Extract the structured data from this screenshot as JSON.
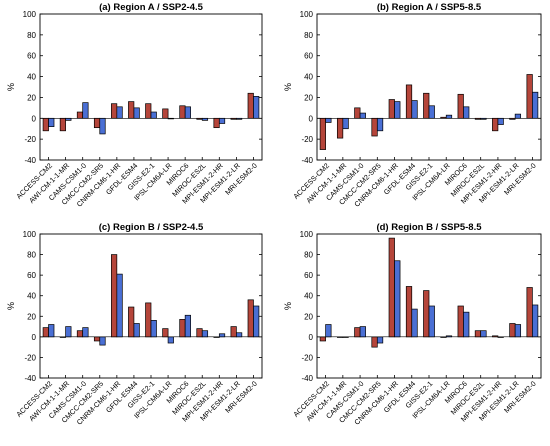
{
  "figure": {
    "background": "#ffffff"
  },
  "chart_data": [
    {
      "type": "bar",
      "title": "(a) Region A / SSP2-4.5",
      "ylabel": "%",
      "ylim": [
        -40,
        100
      ],
      "yticks": [
        -40,
        -20,
        0,
        20,
        40,
        60,
        80,
        100
      ],
      "grid": false,
      "legend": "none",
      "categories": [
        "ACCESS-CM2",
        "AWI-CM-1-1-MR",
        "CAMS-CSM1-0",
        "CMCC-CM2-SR5",
        "CNRM-CM6-1-HR",
        "GFDL-ESM4",
        "GISS-E2-1",
        "IPSL-CM6A-LR",
        "MIROC6",
        "MIROC-ES2L",
        "MPI-ESM1-2-HR",
        "MPI-ESM1-2-LR",
        "MRI-ESM2-0"
      ],
      "series": [
        {
          "color": "#b5453a",
          "values": [
            -12,
            -12,
            6,
            -9,
            14,
            16,
            14,
            9,
            12,
            -1,
            -9,
            -1,
            24
          ]
        },
        {
          "color": "#4a6fd4",
          "values": [
            -8,
            -2,
            15,
            -15,
            11,
            10,
            6,
            0,
            11,
            -2,
            -5,
            -1,
            21
          ]
        }
      ]
    },
    {
      "type": "bar",
      "title": "(b) Region A / SSP5-8.5",
      "ylabel": "%",
      "ylim": [
        -40,
        100
      ],
      "yticks": [
        -40,
        -20,
        0,
        20,
        40,
        60,
        80,
        100
      ],
      "grid": false,
      "legend": "none",
      "categories": [
        "ACCESS-CM2",
        "AWI-CM-1-1-MR",
        "CAMS-CSM1-0",
        "CMCC-CM2-SR5",
        "CNRM-CM6-1-HR",
        "GFDL-ESM4",
        "GISS-E2-1",
        "IPSL-CM6A-LR",
        "MIROC6",
        "MIROC-ES2L",
        "MPI-ESM1-2-HR",
        "MPI-ESM1-2-LR",
        "MRI-ESM2-0"
      ],
      "series": [
        {
          "color": "#b5453a",
          "values": [
            -30,
            -19,
            10,
            -17,
            18,
            32,
            24,
            1,
            23,
            -1,
            -12,
            -1,
            42
          ]
        },
        {
          "color": "#4a6fd4",
          "values": [
            -4,
            -10,
            5,
            -12,
            16,
            17,
            12,
            3,
            11,
            -1,
            -6,
            4,
            25
          ]
        }
      ]
    },
    {
      "type": "bar",
      "title": "(c) Region B / SSP2-4.5",
      "ylabel": "%",
      "ylim": [
        -40,
        100
      ],
      "yticks": [
        -40,
        -20,
        0,
        20,
        40,
        60,
        80,
        100
      ],
      "grid": false,
      "legend": "none",
      "categories": [
        "ACCESS-CM2",
        "AWI-CM-1-1-MR",
        "CAMS-CSM1-0",
        "CMCC-CM2-SR5",
        "CNRM-CM6-1-HR",
        "GFDL-ESM4",
        "GISS-E2-1",
        "IPSL-CM6A-LR",
        "MIROC6",
        "MIROC-ES2L",
        "MPI-ESM1-2-HR",
        "MPI-ESM1-2-LR",
        "MRI-ESM2-0"
      ],
      "series": [
        {
          "color": "#b5453a",
          "values": [
            9,
            0,
            6,
            -4,
            80,
            29,
            33,
            8,
            17,
            8,
            0,
            10,
            36
          ]
        },
        {
          "color": "#4a6fd4",
          "values": [
            12,
            10,
            9,
            -8,
            61,
            13,
            16,
            -6,
            21,
            6,
            3,
            4,
            30
          ]
        }
      ]
    },
    {
      "type": "bar",
      "title": "(d) Region B / SSP5-8.5",
      "ylabel": "%",
      "ylim": [
        -40,
        100
      ],
      "yticks": [
        -40,
        -20,
        0,
        20,
        40,
        60,
        80,
        100
      ],
      "grid": false,
      "legend": "none",
      "categories": [
        "ACCESS-CM2",
        "AWI-CM-1-1-MR",
        "CAMS-CSM1-0",
        "CMCC-CM2-SR5",
        "CNRM-CM6-1-HR",
        "GFDL-ESM4",
        "GISS-E2-1",
        "IPSL-CM6A-LR",
        "MIROC6",
        "MIROC-ES2L",
        "MPI-ESM1-2-HR",
        "MPI-ESM1-2-LR",
        "MRI-ESM2-0"
      ],
      "series": [
        {
          "color": "#b5453a",
          "values": [
            -4,
            0,
            9,
            -10,
            96,
            49,
            45,
            0,
            30,
            6,
            1,
            13,
            48
          ]
        },
        {
          "color": "#4a6fd4",
          "values": [
            12,
            0,
            10,
            -6,
            74,
            27,
            30,
            1,
            24,
            6,
            0,
            12,
            31
          ]
        }
      ]
    }
  ]
}
